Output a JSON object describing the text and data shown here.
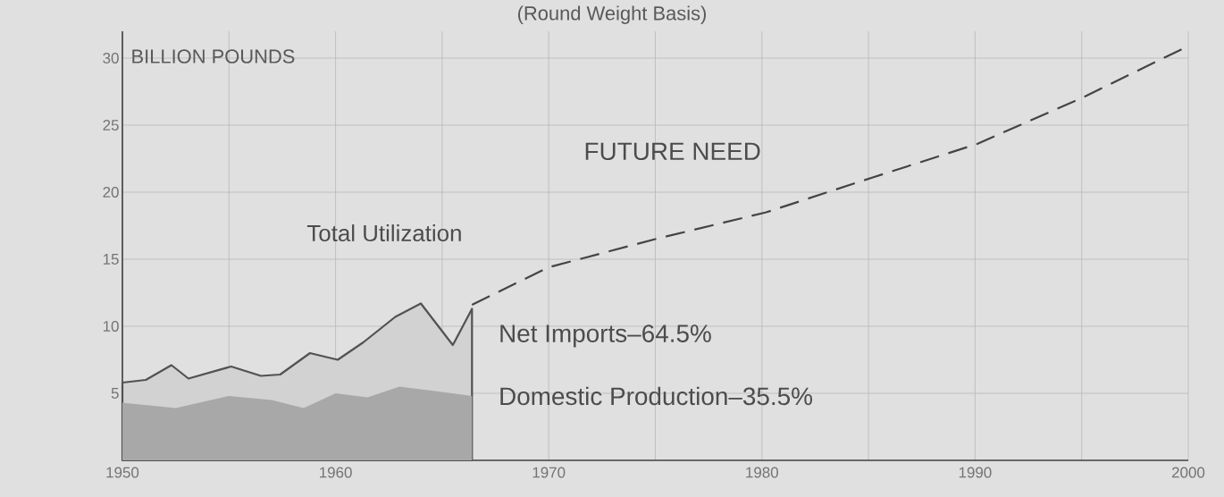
{
  "chart_data": {
    "type": "area",
    "subtitle": "(Round Weight Basis)",
    "ylabel": "BILLION POUNDS",
    "annotations": [
      "Total Utilization",
      "FUTURE NEED",
      "Net Imports–64.5%",
      "Domestic Production–35.5%"
    ],
    "series": [
      {
        "color": "#d2d2d2",
        "x": [
          1950,
          1951.1,
          1952.3,
          1953.1,
          1955.1,
          1956.5,
          1957.4,
          1958.8,
          1960.1,
          1961.3,
          1962.8,
          1964.0,
          1965.5,
          1966.4
        ],
        "values": [
          5.8,
          6.0,
          7.1,
          6.1,
          7.0,
          6.3,
          6.4,
          8.0,
          7.5,
          8.8,
          10.7,
          11.7,
          8.6,
          11.3
        ]
      },
      {
        "color": "#a8a8a8",
        "x": [
          1950,
          1952.5,
          1955,
          1957,
          1958.5,
          1960,
          1961.5,
          1963,
          1964.5,
          1966.4
        ],
        "values": [
          4.3,
          3.9,
          4.8,
          4.5,
          3.9,
          5.0,
          4.7,
          5.5,
          5.2,
          4.8
        ]
      },
      {
        "type": "line",
        "color": "#444444",
        "line_style": "dashed",
        "x": [
          1966.4,
          1970,
          1975,
          1980.2,
          1985.2,
          1990.1,
          1995.1,
          2000
        ],
        "values": [
          11.6,
          14.4,
          16.5,
          18.5,
          21.1,
          23.6,
          27.1,
          30.9
        ]
      }
    ],
    "xlim": [
      1950,
      2000
    ],
    "ylim": [
      0,
      32
    ],
    "xticks": [
      1950,
      {
        "value": 1955,
        "label": null
      },
      1960,
      {
        "value": 1965,
        "label": null
      },
      1970,
      {
        "value": 1975,
        "label": null
      },
      1980,
      {
        "value": 1985,
        "label": null
      },
      1990,
      {
        "value": 1995,
        "label": null
      },
      2000
    ],
    "yticks": [
      5,
      10,
      15,
      20,
      25,
      30
    ],
    "grid": true,
    "marker": "none"
  }
}
